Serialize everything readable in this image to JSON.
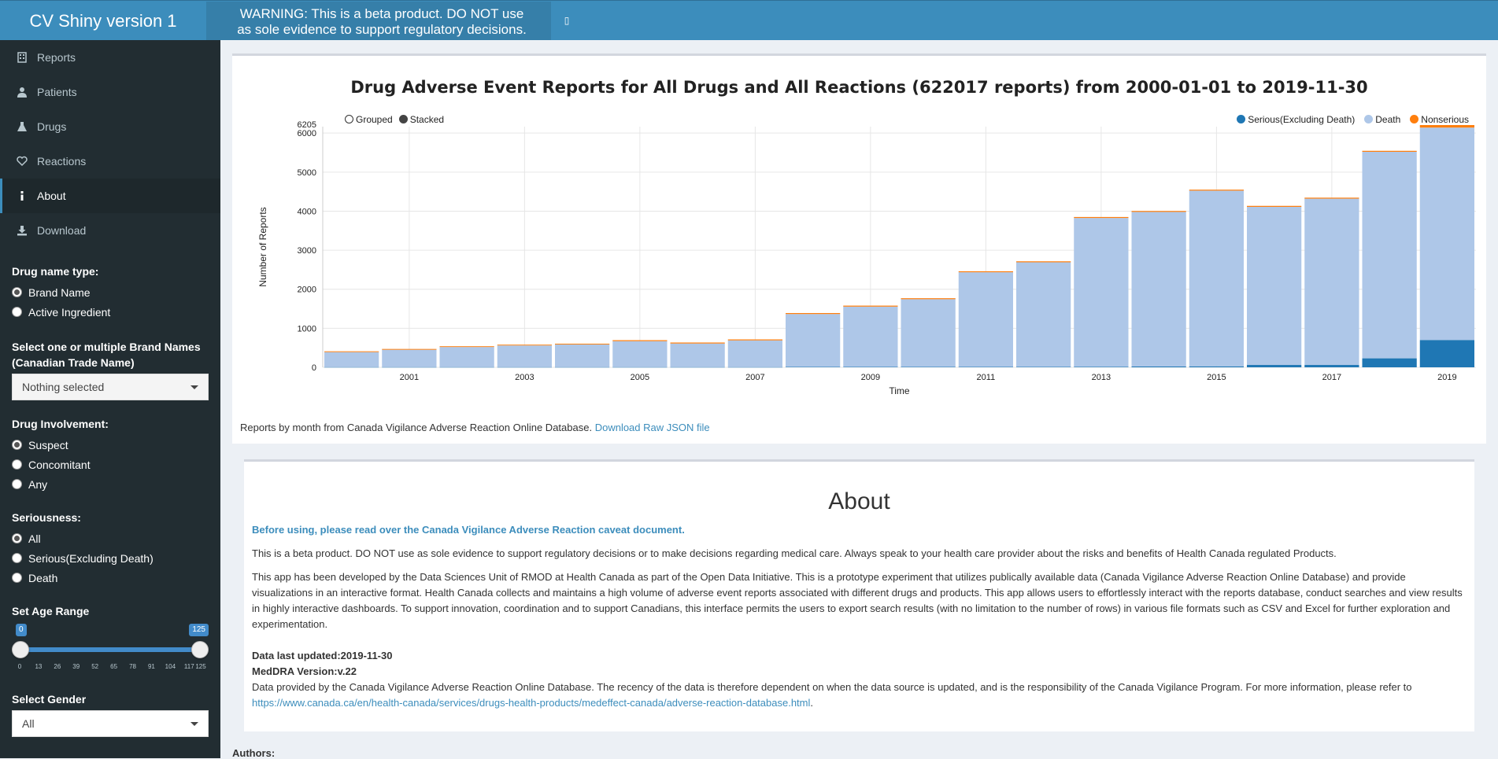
{
  "header": {
    "app_title": "CV Shiny version 1",
    "warning_line1": "WARNING: This is a beta product. DO NOT use",
    "warning_line2": "as sole evidence to support regulatory decisions."
  },
  "sidebar": {
    "menu": [
      {
        "label": "Reports",
        "icon": "building-icon"
      },
      {
        "label": "Patients",
        "icon": "user-icon"
      },
      {
        "label": "Drugs",
        "icon": "flask-icon"
      },
      {
        "label": "Reactions",
        "icon": "heart-icon"
      },
      {
        "label": "About",
        "icon": "info-icon"
      },
      {
        "label": "Download",
        "icon": "download-icon"
      }
    ],
    "drug_name_type": {
      "label": "Drug name type:",
      "options": [
        "Brand Name",
        "Active Ingredient"
      ],
      "selected": "Brand Name"
    },
    "brand_names": {
      "label": "Select one or multiple Brand Names (Canadian Trade Name)",
      "value": "Nothing selected"
    },
    "drug_involvement": {
      "label": "Drug Involvement:",
      "options": [
        "Suspect",
        "Concomitant",
        "Any"
      ],
      "selected": "Suspect"
    },
    "seriousness": {
      "label": "Seriousness:",
      "options": [
        "All",
        "Serious(Excluding Death)",
        "Death"
      ],
      "selected": "All"
    },
    "age_range": {
      "label": "Set Age Range",
      "min": 0,
      "max": 125,
      "low": 0,
      "high": 125,
      "low_label": "0",
      "high_label": "125",
      "ticks": [
        "0",
        "13",
        "26",
        "39",
        "52",
        "65",
        "78",
        "91",
        "104",
        "117",
        "125"
      ]
    },
    "gender": {
      "label": "Select Gender",
      "value": "All"
    }
  },
  "chart": {
    "title": "Drug Adverse Event Reports for All Drugs and All Reactions (622017 reports) from 2000-01-01 to 2019-11-30",
    "mode_options": [
      "Grouped",
      "Stacked"
    ],
    "caption": "Reports by month from Canada Vigilance Adverse Reaction Online Database.",
    "download_link": "Download Raw JSON file",
    "colors": {
      "serious": "#1f77b4",
      "death": "#aec7e8",
      "nonserious": "#ff7f0e"
    }
  },
  "chart_data": {
    "type": "bar",
    "stacked": true,
    "x": [
      2000,
      2001,
      2002,
      2003,
      2004,
      2005,
      2006,
      2007,
      2008,
      2009,
      2010,
      2011,
      2012,
      2013,
      2014,
      2015,
      2016,
      2017,
      2018,
      2019
    ],
    "xticks": [
      "2001",
      "2003",
      "2005",
      "2007",
      "2009",
      "2011",
      "2013",
      "2015",
      "2017",
      "2019"
    ],
    "yticks": [
      "0",
      "1000",
      "2000",
      "3000",
      "4000",
      "5000",
      "6000"
    ],
    "ymax_label": "6205",
    "ylim": [
      0,
      6205
    ],
    "xlabel": "Time",
    "ylabel": "Number of Reports",
    "legend_position": "top-right",
    "series": [
      {
        "name": "Serious(Excluding Death)",
        "values": [
          5,
          5,
          5,
          5,
          5,
          5,
          5,
          5,
          10,
          10,
          10,
          10,
          10,
          15,
          20,
          25,
          60,
          60,
          230,
          700
        ]
      },
      {
        "name": "Death",
        "values": [
          385,
          445,
          515,
          555,
          580,
          665,
          605,
          685,
          1355,
          1545,
          1735,
          2425,
          2680,
          3810,
          3960,
          4500,
          4050,
          4260,
          5290,
          5440
        ]
      },
      {
        "name": "Nonserious",
        "values": [
          20,
          20,
          20,
          20,
          20,
          25,
          25,
          25,
          25,
          25,
          25,
          25,
          25,
          25,
          25,
          25,
          25,
          25,
          25,
          65
        ]
      }
    ]
  },
  "about": {
    "title": "About",
    "caveat": "Before using, please read over the Canada Vigilance Adverse Reaction caveat document.",
    "para1": "This is a beta product. DO NOT use as sole evidence to support regulatory decisions or to make decisions regarding medical care. Always speak to your health care provider about the risks and benefits of Health Canada regulated Products.",
    "para2": "This app has been developed by the Data Sciences Unit of RMOD at Health Canada as part of the Open Data Initiative. This is a prototype experiment that utilizes publically available data (Canada Vigilance Adverse Reaction Online Database) and provide visualizations in an interactive format. Health Canada collects and maintains a high volume of adverse event reports associated with different drugs and products. This app allows users to effortlessly interact with the reports database, conduct searches and view results in highly interactive dashboards. To support innovation, coordination and to support Canadians, this interface permits the users to export search results (with no limitation to the number of rows) in various file formats such as CSV and Excel for further exploration and experimentation.",
    "updated": "Data last updated:2019-11-30",
    "meddra": "MedDRA Version:v.22",
    "provided": "Data provided by the Canada Vigilance Adverse Reaction Online Database. The recency of the data is therefore dependent on when the data source is updated, and is the responsibility of the Canada Vigilance Program. For more information, please refer to",
    "link": "https://www.canada.ca/en/health-canada/services/drugs-health-products/medeffect-canada/adverse-reaction-database.html",
    "link_suffix": ".",
    "authors": "Authors:"
  }
}
